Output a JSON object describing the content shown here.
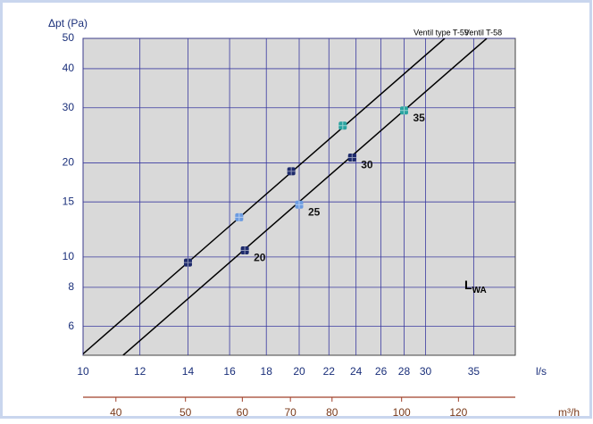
{
  "chart_data": {
    "type": "line",
    "ylabel": "Δpt (Pa)",
    "xlabel": "l/s",
    "x2label": "m³/h",
    "log_x": true,
    "log_y": true,
    "grid": true,
    "xlim": [
      10,
      40
    ],
    "xticks": [
      10,
      12,
      14,
      16,
      18,
      20,
      22,
      24,
      26,
      28,
      30,
      35
    ],
    "ylim": [
      4.85,
      50
    ],
    "yticks": [
      6,
      8,
      10,
      15,
      20,
      30,
      40,
      50
    ],
    "x2lim": [
      36,
      144
    ],
    "x2ticks": [
      40,
      50,
      60,
      70,
      80,
      100,
      120
    ],
    "series": [
      {
        "name": "Ventil type T-59",
        "color": "#000000",
        "x": [
          10,
          31.9
        ],
        "values": [
          4.9,
          50
        ],
        "points": {
          "x": [
            14,
            16.5,
            19.5,
            23
          ],
          "values": [
            9.6,
            13.4,
            18.8,
            26.3
          ],
          "colors": [
            "#1d2a6b",
            "#6b9be0",
            "#1d2a6b",
            "#2aa3a0"
          ]
        }
      },
      {
        "name": "Ventil T-58",
        "color": "#000000",
        "x": [
          11.37,
          36.5
        ],
        "values": [
          4.85,
          50
        ],
        "points": {
          "x": [
            16.8,
            20,
            23.7,
            28
          ],
          "values": [
            10.5,
            14.7,
            20.8,
            29.4
          ],
          "colors": [
            "#1d2a6b",
            "#6b9be0",
            "#1d2a6b",
            "#2aa3a0"
          ],
          "labels": [
            "20",
            "25",
            "30",
            "35"
          ]
        }
      }
    ],
    "annotation": {
      "main": "L",
      "sub": "WA"
    }
  }
}
